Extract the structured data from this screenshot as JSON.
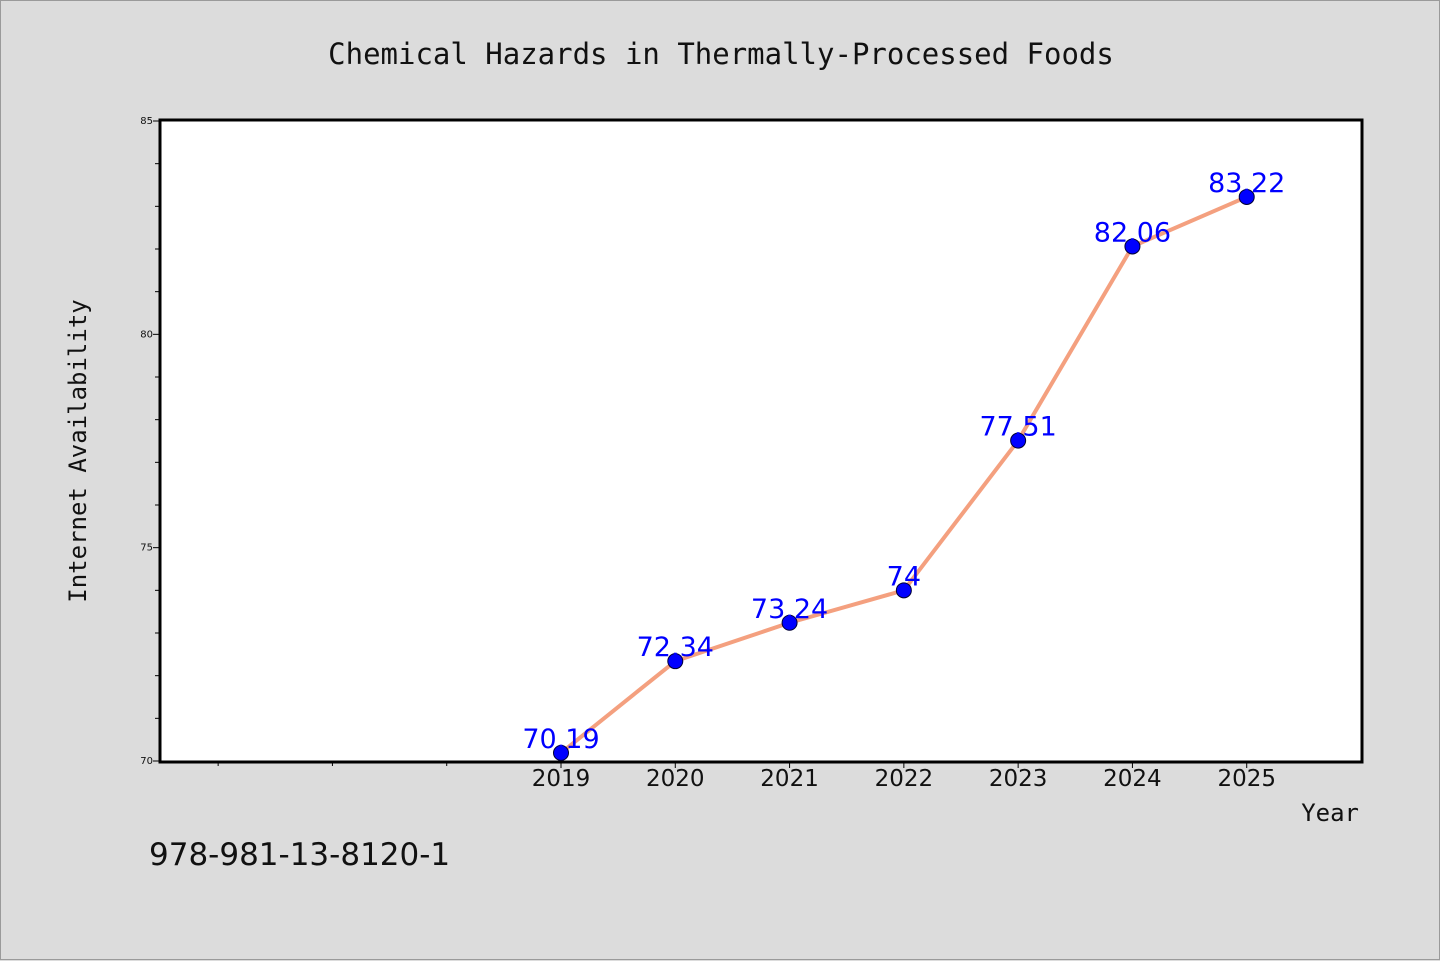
{
  "chart_data": {
    "type": "line",
    "title": "Chemical Hazards in Thermally-Processed Foods",
    "xlabel": "Year",
    "ylabel": "Internet Availability",
    "x": [
      "2019",
      "2020",
      "2021",
      "2022",
      "2023",
      "2024",
      "2025"
    ],
    "series": [
      {
        "values": [
          70.19,
          72.34,
          73.24,
          74,
          77.51,
          82.06,
          83.22
        ],
        "labels": [
          "70.19",
          "72.34",
          "73.24",
          "74",
          "77.51",
          "82.06",
          "83.22"
        ]
      }
    ],
    "ylim": [
      70,
      85
    ],
    "yticks": [
      70,
      75,
      80,
      85
    ],
    "xlim": [
      2015.5,
      2026
    ],
    "x_minor_ticks": [
      2016,
      2017,
      2018
    ],
    "grid": false,
    "colors": {
      "line": "#f4a07f",
      "marker": "#0000ff",
      "label": "#0000ff",
      "plot_background": "#ffffff",
      "figure_background": "#dcdcdc"
    }
  },
  "annotation": "978-981-13-8120-1"
}
